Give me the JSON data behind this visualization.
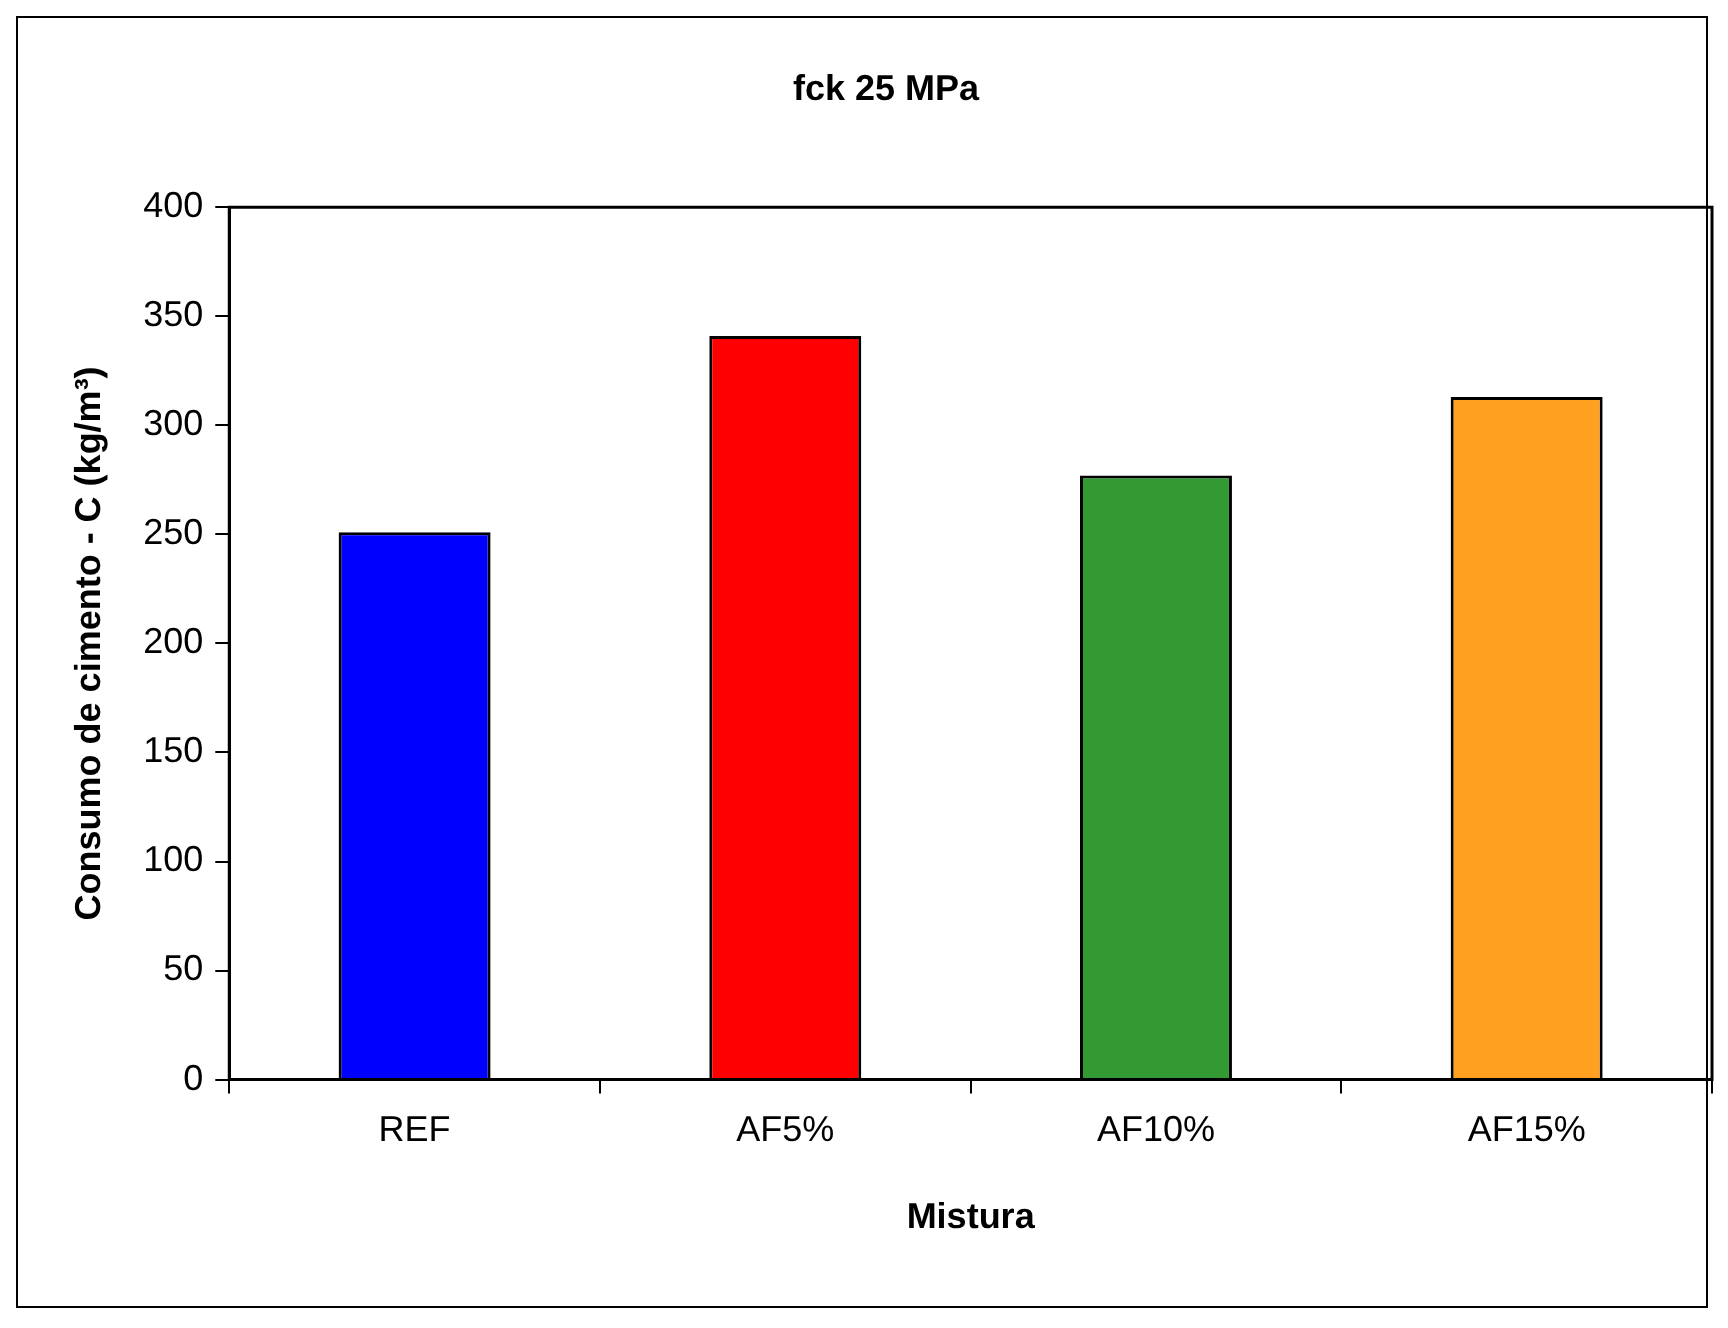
{
  "chart_data": {
    "type": "bar",
    "title": "fck 25 MPa",
    "xlabel": "Mistura",
    "ylabel": "Consumo de cimento - C (kg/m³)",
    "categories": [
      "REF",
      "AF5%",
      "AF10%",
      "AF15%"
    ],
    "values": [
      251,
      341,
      277,
      313
    ],
    "colors": [
      "#0000ff",
      "#ff0000",
      "#339933",
      "#ffa020"
    ],
    "ylim": [
      0,
      400
    ],
    "yticks": [
      0,
      50,
      100,
      150,
      200,
      250,
      300,
      350,
      400
    ],
    "grid": false,
    "legend": false
  }
}
